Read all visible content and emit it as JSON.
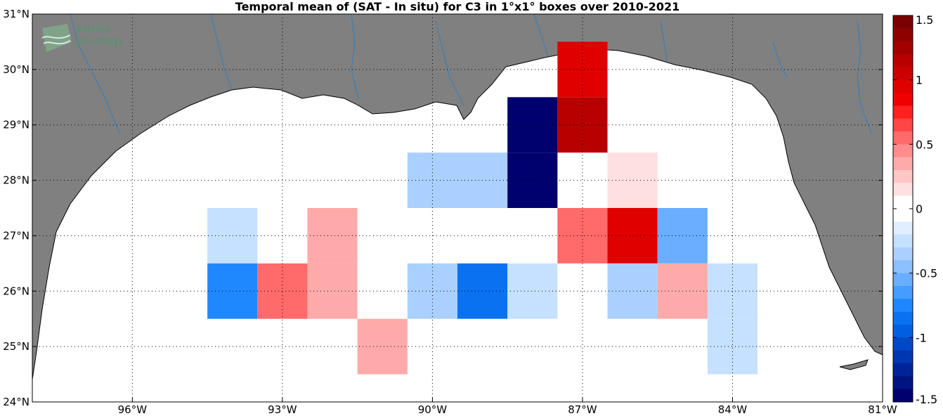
{
  "title": "Temporal mean of (SAT - In situ) for C3 in 1°x1° boxes over 2010-2021",
  "logo": {
    "line1": "smos",
    "line2": "pi-mep"
  },
  "axes": {
    "x_ticks": [
      {
        "value": -96,
        "label": "96°W"
      },
      {
        "value": -93,
        "label": "93°W"
      },
      {
        "value": -90,
        "label": "90°W"
      },
      {
        "value": -87,
        "label": "87°W"
      },
      {
        "value": -84,
        "label": "84°W"
      },
      {
        "value": -81,
        "label": "81°W"
      }
    ],
    "y_ticks": [
      {
        "value": 24,
        "label": "24°N"
      },
      {
        "value": 25,
        "label": "25°N"
      },
      {
        "value": 26,
        "label": "26°N"
      },
      {
        "value": 27,
        "label": "27°N"
      },
      {
        "value": 28,
        "label": "28°N"
      },
      {
        "value": 29,
        "label": "29°N"
      },
      {
        "value": 30,
        "label": "30°N"
      },
      {
        "value": 31,
        "label": "31°N"
      }
    ],
    "lon_range": [
      -98,
      -81
    ],
    "lat_range": [
      24,
      31
    ],
    "grid": "dotted"
  },
  "colorbar": {
    "range": [
      -1.5,
      1.5
    ],
    "ticks": [
      {
        "value": 1.5,
        "label": "1.5"
      },
      {
        "value": 1,
        "label": "1"
      },
      {
        "value": 0.5,
        "label": "0.5"
      },
      {
        "value": 0,
        "label": "0"
      },
      {
        "value": -0.5,
        "label": "-0.5"
      },
      {
        "value": -1,
        "label": "-1"
      },
      {
        "value": -1.5,
        "label": "-1.5"
      }
    ],
    "colors_top_to_bottom": [
      "#7a0000",
      "#8f0000",
      "#a30000",
      "#b80000",
      "#cc0000",
      "#e00000",
      "#f00000",
      "#ff2020",
      "#ff4646",
      "#ff6a6a",
      "#ff8c8c",
      "#ffaaaa",
      "#ffc6c6",
      "#ffe0e0",
      "#ffffff",
      "#ffffff",
      "#e0eeff",
      "#c6e0ff",
      "#aad0ff",
      "#8cc0ff",
      "#6aaeff",
      "#469cff",
      "#2088ff",
      "#0a72f0",
      "#005ee0",
      "#0048c8",
      "#0036b0",
      "#002498",
      "#001480",
      "#00006e"
    ]
  },
  "chart_data": {
    "type": "heatmap",
    "title": "Temporal mean of (SAT - In situ) for C3 in 1°x1° boxes over 2010-2021",
    "cell_size_deg": 1,
    "value_units": "colorbar units",
    "cells": [
      {
        "lon": -87,
        "lat": 30,
        "value": 1.0
      },
      {
        "lon": -88,
        "lat": 29,
        "value": -1.5
      },
      {
        "lon": -87,
        "lat": 29,
        "value": 1.2
      },
      {
        "lon": -90,
        "lat": 28,
        "value": -0.3
      },
      {
        "lon": -89,
        "lat": 28,
        "value": -0.3
      },
      {
        "lon": -88,
        "lat": 28,
        "value": -1.5
      },
      {
        "lon": -86,
        "lat": 28,
        "value": 0.15
      },
      {
        "lon": -94,
        "lat": 27,
        "value": -0.2
      },
      {
        "lon": -92,
        "lat": 27,
        "value": 0.3
      },
      {
        "lon": -87,
        "lat": 27,
        "value": 0.6
      },
      {
        "lon": -86,
        "lat": 27,
        "value": 0.9
      },
      {
        "lon": -85,
        "lat": 27,
        "value": -0.5
      },
      {
        "lon": -94,
        "lat": 26,
        "value": -0.75
      },
      {
        "lon": -93,
        "lat": 26,
        "value": 0.6
      },
      {
        "lon": -92,
        "lat": 26,
        "value": 0.3
      },
      {
        "lon": -90,
        "lat": 26,
        "value": -0.35
      },
      {
        "lon": -89,
        "lat": 26,
        "value": -0.9
      },
      {
        "lon": -88,
        "lat": 26,
        "value": -0.2
      },
      {
        "lon": -86,
        "lat": 26,
        "value": -0.35
      },
      {
        "lon": -85,
        "lat": 26,
        "value": 0.3
      },
      {
        "lon": -84,
        "lat": 26,
        "value": -0.2
      },
      {
        "lon": -91,
        "lat": 25,
        "value": 0.3
      },
      {
        "lon": -84,
        "lat": 25,
        "value": -0.2
      }
    ]
  }
}
